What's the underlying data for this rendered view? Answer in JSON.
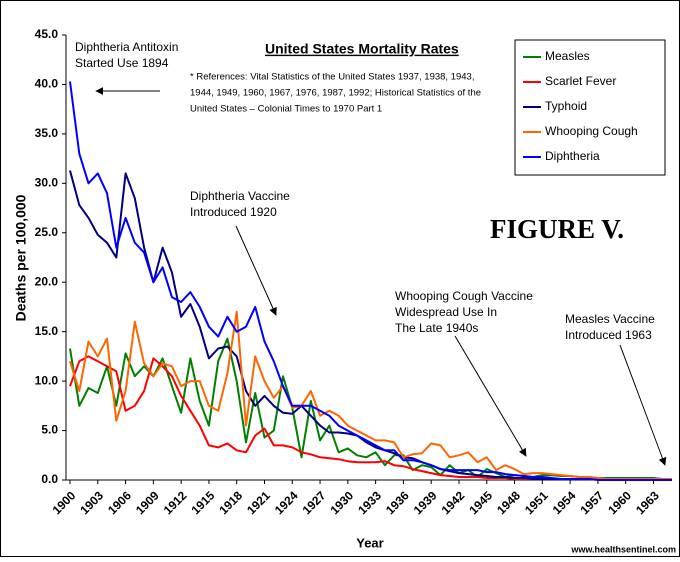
{
  "chart_data": {
    "type": "line",
    "title": "United States Mortality Rates",
    "note": [
      "* References: Vital Statistics of the United States 1937, 1938, 1943,",
      "1944, 1949, 1960, 1967, 1976, 1987, 1992; Historical Statistics of the",
      "United States – Colonial Times to 1970 Part 1"
    ],
    "figure_label": "FIGURE V.",
    "y_label": "Deaths per 100,000",
    "x_label": "Year",
    "source": "www.healthsentinel.com",
    "annotations": [
      [
        "Diphtheria Antitoxin",
        "Started Use 1894"
      ],
      [
        "Diphtheria Vaccine",
        "Introduced 1920"
      ],
      [
        "Whooping Cough Vaccine",
        "Widespread Use In",
        "The Late 1940s"
      ],
      [
        "Measles Vaccine",
        "Introduced 1963"
      ]
    ],
    "x": [
      1900,
      1901,
      1902,
      1903,
      1904,
      1905,
      1906,
      1907,
      1908,
      1909,
      1910,
      1911,
      1912,
      1913,
      1914,
      1915,
      1916,
      1917,
      1918,
      1919,
      1920,
      1921,
      1922,
      1923,
      1924,
      1925,
      1926,
      1927,
      1928,
      1929,
      1930,
      1931,
      1932,
      1933,
      1934,
      1935,
      1936,
      1937,
      1938,
      1939,
      1940,
      1941,
      1942,
      1943,
      1944,
      1945,
      1946,
      1947,
      1948,
      1949,
      1950,
      1951,
      1952,
      1953,
      1954,
      1955,
      1956,
      1957,
      1958,
      1959,
      1960,
      1961,
      1962,
      1963,
      1964,
      1965
    ],
    "xlim": [
      1900,
      1965
    ],
    "xticks": [
      1900,
      1903,
      1906,
      1909,
      1912,
      1915,
      1918,
      1921,
      1924,
      1927,
      1930,
      1933,
      1936,
      1939,
      1942,
      1945,
      1948,
      1951,
      1954,
      1957,
      1960,
      1963
    ],
    "ylim": [
      0,
      45
    ],
    "yticks": [
      {
        "value": 0,
        "label": "0.0"
      },
      {
        "value": 5,
        "label": "5.0"
      },
      {
        "value": 10,
        "label": "10.0"
      },
      {
        "value": 15,
        "label": "15.0"
      },
      {
        "value": 20,
        "label": "20.0"
      },
      {
        "value": 25,
        "label": "25.0"
      },
      {
        "value": 30,
        "label": "30.0"
      },
      {
        "value": 35,
        "label": "35.0"
      },
      {
        "value": 40,
        "label": "40.0"
      },
      {
        "value": 45,
        "label": "45.0"
      }
    ],
    "grid": false,
    "legend": "upper right",
    "series": [
      {
        "name": "Measles",
        "color": "#008000",
        "values": [
          13.3,
          7.5,
          9.3,
          8.8,
          11.5,
          7.5,
          12.8,
          10.5,
          11.5,
          10.5,
          12.3,
          9.5,
          6.8,
          12.3,
          8,
          5.5,
          12,
          14.3,
          10,
          3.8,
          8.8,
          4.3,
          5,
          10.5,
          7.3,
          2.3,
          8,
          4,
          5.5,
          2.8,
          3.2,
          2.5,
          2.3,
          2.8,
          1.5,
          2.5,
          2.5,
          1,
          1.5,
          1.3,
          0.5,
          1.5,
          0.7,
          1,
          0.3,
          1.1,
          0.7,
          0.3,
          0.5,
          0.4,
          0.3,
          0.5,
          0.5,
          0.4,
          0.4,
          0.3,
          0.3,
          0.2,
          0.2,
          0.2,
          0.2,
          0.2,
          0.2,
          0.2,
          0.1,
          0.1
        ]
      },
      {
        "name": "Scarlet Fever",
        "color": "#ff0000",
        "values": [
          9.5,
          12,
          12.5,
          12,
          11.5,
          11,
          7,
          7.5,
          9,
          12.3,
          11.5,
          10.5,
          8.5,
          7,
          5.5,
          3.5,
          3.3,
          3.7,
          3,
          2.8,
          4.5,
          5.2,
          3.5,
          3.5,
          3.3,
          2.8,
          2.6,
          2.3,
          2.2,
          2.1,
          1.9,
          1.8,
          1.8,
          1.8,
          1.9,
          1.5,
          1.4,
          1.1,
          0.9,
          0.7,
          0.5,
          0.4,
          0.3,
          0.3,
          0.3,
          0.2,
          0.2,
          0.2,
          0.1,
          0.1,
          0.1,
          0.1,
          0.1,
          0.1,
          0.1,
          0.1,
          0.1,
          0.1,
          0.1,
          0.1,
          0.1,
          0.1,
          0.1,
          0.1,
          0.1,
          0.1
        ]
      },
      {
        "name": "Typhoid",
        "color": "#000080",
        "values": [
          31.3,
          27.8,
          26.5,
          24.8,
          24,
          22.5,
          31,
          28.5,
          23.5,
          20,
          23.5,
          21,
          16.5,
          17.8,
          15.5,
          12.3,
          13.3,
          13.5,
          12.5,
          9,
          7.5,
          8.5,
          7.5,
          6.8,
          6.7,
          7.5,
          6.5,
          5.5,
          4.8,
          4.8,
          4.7,
          4.5,
          3.8,
          3.3,
          3,
          2.7,
          2.3,
          2.2,
          1.8,
          1.5,
          1.1,
          0.9,
          0.7,
          0.6,
          0.5,
          0.4,
          0.3,
          0.3,
          0.2,
          0.2,
          0.1,
          0.1,
          0.1,
          0.1,
          0.1,
          0.1,
          0.1,
          0.1,
          0.1,
          0.1,
          0.1,
          0.1,
          0.1,
          0.1,
          0.1,
          0.1
        ]
      },
      {
        "name": "Whooping Cough",
        "color": "#ff6600",
        "values": [
          12,
          9,
          14,
          12.5,
          14.3,
          6,
          9,
          16,
          11.8,
          10.5,
          11.8,
          11.5,
          9.5,
          10,
          10,
          7.5,
          7,
          10.8,
          17,
          5.5,
          12.5,
          10,
          8.3,
          9.5,
          7.3,
          7.5,
          9,
          6.5,
          7,
          6.5,
          5.5,
          5,
          4.5,
          4,
          4,
          3.8,
          2.3,
          2.6,
          2.7,
          3.7,
          3.5,
          2.3,
          2.5,
          2.8,
          1.8,
          2.3,
          1,
          1.5,
          1.1,
          0.6,
          0.7,
          0.7,
          0.6,
          0.5,
          0.4,
          0.3,
          0.3,
          0.2,
          0.1,
          0.1,
          0.1,
          0.1,
          0.1,
          0.1,
          0.1,
          0.1
        ]
      },
      {
        "name": "Diphtheria",
        "color": "#0000ff",
        "values": [
          40.3,
          33,
          30,
          31,
          29,
          23.5,
          26.5,
          24,
          23,
          20,
          21.5,
          18.5,
          18,
          19,
          17.5,
          15.5,
          14.5,
          16.5,
          15,
          15.5,
          17.5,
          14,
          12,
          9.5,
          7.5,
          7.5,
          7.5,
          7,
          6.5,
          5.5,
          5,
          4.5,
          4,
          3.5,
          3,
          3,
          2,
          2,
          1.8,
          1.5,
          1.1,
          1,
          1,
          1,
          1,
          0.8,
          0.8,
          0.6,
          0.5,
          0.4,
          0.3,
          0.3,
          0.2,
          0.1,
          0.1,
          0.1,
          0.1,
          0,
          0,
          0,
          0,
          0,
          0,
          0,
          0,
          0
        ]
      }
    ]
  }
}
